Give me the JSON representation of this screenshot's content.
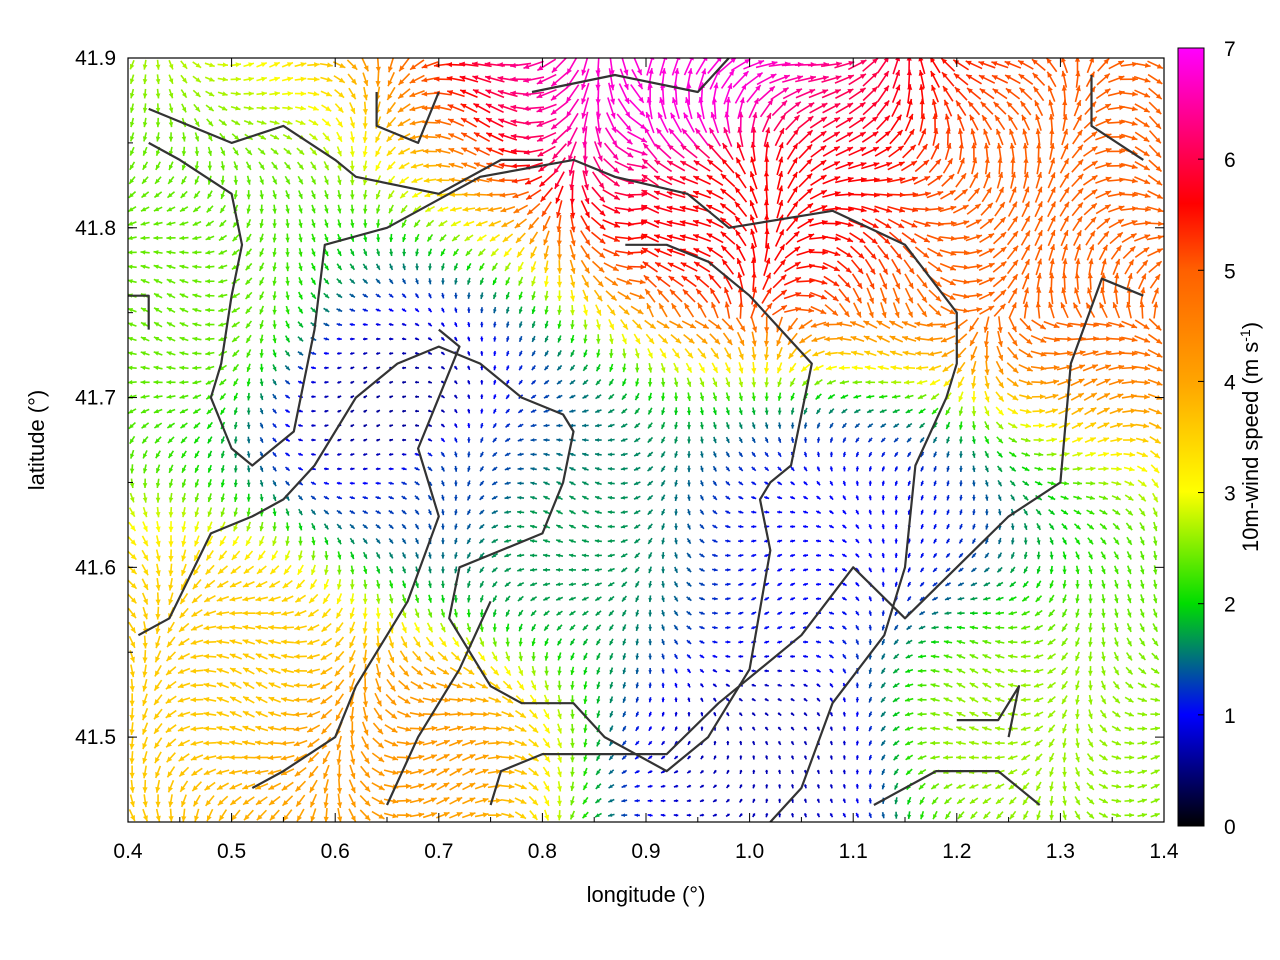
{
  "chart_data": {
    "type": "vector-field",
    "xlabel": "longitude (°)",
    "ylabel": "latitude (°)",
    "xlim": [
      0.4,
      1.4
    ],
    "ylim": [
      41.45,
      41.9
    ],
    "xticks": [
      "0.4",
      "0.5",
      "0.6",
      "0.7",
      "0.8",
      "0.9",
      "1.0",
      "1.1",
      "1.2",
      "1.3",
      "1.4"
    ],
    "yticks": [
      "41.5",
      "41.6",
      "41.7",
      "41.8",
      "41.9"
    ],
    "colorbar": {
      "label_main": "10m-wind speed (m s",
      "label_sup": "-1",
      "label_end": ")",
      "range": [
        0,
        7
      ],
      "ticks": [
        "0",
        "1",
        "2",
        "3",
        "4",
        "5",
        "6",
        "7"
      ],
      "colors": [
        "#000000",
        "#0000ff",
        "#00dd00",
        "#ffff00",
        "#ffa500",
        "#ff0000",
        "#ff00ff"
      ]
    },
    "contours": [
      [
        [
          0.42,
          41.87
        ],
        [
          0.5,
          41.85
        ],
        [
          0.55,
          41.86
        ],
        [
          0.6,
          41.84
        ],
        [
          0.62,
          41.83
        ],
        [
          0.7,
          41.82
        ],
        [
          0.76,
          41.84
        ],
        [
          0.8,
          41.84
        ]
      ],
      [
        [
          0.42,
          41.85
        ],
        [
          0.45,
          41.84
        ],
        [
          0.5,
          41.82
        ],
        [
          0.51,
          41.79
        ],
        [
          0.5,
          41.76
        ],
        [
          0.49,
          41.72
        ],
        [
          0.48,
          41.7
        ],
        [
          0.5,
          41.67
        ],
        [
          0.52,
          41.66
        ],
        [
          0.56,
          41.68
        ],
        [
          0.58,
          41.74
        ],
        [
          0.59,
          41.79
        ],
        [
          0.65,
          41.8
        ],
        [
          0.74,
          41.83
        ],
        [
          0.83,
          41.84
        ],
        [
          0.87,
          41.83
        ],
        [
          0.94,
          41.82
        ],
        [
          0.98,
          41.8
        ],
        [
          1.08,
          41.81
        ],
        [
          1.15,
          41.79
        ],
        [
          1.2,
          41.75
        ],
        [
          1.2,
          41.72
        ],
        [
          1.19,
          41.7
        ],
        [
          1.16,
          41.66
        ],
        [
          1.15,
          41.6
        ],
        [
          1.13,
          41.56
        ],
        [
          1.08,
          41.52
        ],
        [
          1.05,
          41.47
        ],
        [
          1.02,
          41.45
        ]
      ],
      [
        [
          0.41,
          41.56
        ],
        [
          0.44,
          41.57
        ],
        [
          0.48,
          41.62
        ],
        [
          0.52,
          41.63
        ],
        [
          0.55,
          41.64
        ],
        [
          0.58,
          41.66
        ],
        [
          0.62,
          41.7
        ],
        [
          0.66,
          41.72
        ],
        [
          0.7,
          41.73
        ],
        [
          0.74,
          41.72
        ],
        [
          0.78,
          41.7
        ],
        [
          0.82,
          41.69
        ],
        [
          0.83,
          41.68
        ],
        [
          0.82,
          41.65
        ],
        [
          0.8,
          41.62
        ],
        [
          0.76,
          41.61
        ],
        [
          0.72,
          41.6
        ],
        [
          0.71,
          41.57
        ],
        [
          0.75,
          41.53
        ],
        [
          0.78,
          41.52
        ],
        [
          0.83,
          41.52
        ],
        [
          0.86,
          41.5
        ],
        [
          0.92,
          41.48
        ],
        [
          0.96,
          41.5
        ],
        [
          1.0,
          41.54
        ],
        [
          1.02,
          41.61
        ],
        [
          1.01,
          41.64
        ],
        [
          1.02,
          41.65
        ],
        [
          1.04,
          41.66
        ],
        [
          1.05,
          41.69
        ],
        [
          1.06,
          41.72
        ],
        [
          1.03,
          41.74
        ],
        [
          1.0,
          41.76
        ],
        [
          0.96,
          41.78
        ],
        [
          0.92,
          41.79
        ],
        [
          0.88,
          41.79
        ]
      ],
      [
        [
          0.52,
          41.47
        ],
        [
          0.55,
          41.48
        ],
        [
          0.6,
          41.5
        ],
        [
          0.62,
          41.53
        ],
        [
          0.64,
          41.55
        ],
        [
          0.67,
          41.58
        ],
        [
          0.7,
          41.63
        ],
        [
          0.68,
          41.67
        ],
        [
          0.7,
          41.7
        ],
        [
          0.72,
          41.73
        ],
        [
          0.7,
          41.74
        ]
      ],
      [
        [
          0.65,
          41.46
        ],
        [
          0.68,
          41.5
        ],
        [
          0.72,
          41.54
        ],
        [
          0.75,
          41.58
        ]
      ],
      [
        [
          0.75,
          41.46
        ],
        [
          0.76,
          41.48
        ],
        [
          0.8,
          41.49
        ],
        [
          0.86,
          41.49
        ],
        [
          0.92,
          41.49
        ],
        [
          0.97,
          41.52
        ],
        [
          1.05,
          41.56
        ],
        [
          1.1,
          41.6
        ],
        [
          1.15,
          41.57
        ],
        [
          1.2,
          41.6
        ],
        [
          1.25,
          41.63
        ],
        [
          1.3,
          41.65
        ],
        [
          1.31,
          41.72
        ],
        [
          1.34,
          41.77
        ],
        [
          1.38,
          41.76
        ]
      ],
      [
        [
          1.12,
          41.46
        ],
        [
          1.18,
          41.48
        ],
        [
          1.24,
          41.48
        ],
        [
          1.28,
          41.46
        ]
      ],
      [
        [
          1.2,
          41.51
        ],
        [
          1.24,
          41.51
        ],
        [
          1.26,
          41.53
        ],
        [
          1.25,
          41.5
        ]
      ],
      [
        [
          1.33,
          41.89
        ],
        [
          1.33,
          41.86
        ],
        [
          1.38,
          41.84
        ]
      ],
      [
        [
          0.64,
          41.88
        ],
        [
          0.64,
          41.86
        ],
        [
          0.68,
          41.85
        ],
        [
          0.7,
          41.88
        ]
      ],
      [
        [
          0.79,
          41.88
        ],
        [
          0.87,
          41.89
        ],
        [
          0.95,
          41.88
        ],
        [
          0.98,
          41.9
        ]
      ],
      [
        [
          0.4,
          41.76
        ],
        [
          0.42,
          41.76
        ],
        [
          0.42,
          41.74
        ]
      ]
    ],
    "wind_field_note_nodes": [
      {
        "lon": 0.45,
        "lat": 41.75,
        "speed": 2.4
      },
      {
        "lon": 0.72,
        "lat": 41.65,
        "speed": 1.3
      },
      {
        "lon": 0.66,
        "lat": 41.69,
        "speed": 0.6
      },
      {
        "lon": 1.08,
        "lat": 41.62,
        "speed": 1.0
      },
      {
        "lon": 1.02,
        "lat": 41.49,
        "speed": 0.7
      },
      {
        "lon": 0.8,
        "lat": 41.62,
        "speed": 1.7
      },
      {
        "lon": 1.0,
        "lat": 41.82,
        "speed": 5.6
      },
      {
        "lon": 0.94,
        "lat": 41.88,
        "speed": 6.8
      },
      {
        "lon": 1.3,
        "lat": 41.8,
        "speed": 5.0
      },
      {
        "lon": 0.5,
        "lat": 41.55,
        "speed": 3.6
      },
      {
        "lon": 0.65,
        "lat": 41.5,
        "speed": 4.2
      },
      {
        "lon": 1.25,
        "lat": 41.5,
        "speed": 2.6
      }
    ]
  }
}
